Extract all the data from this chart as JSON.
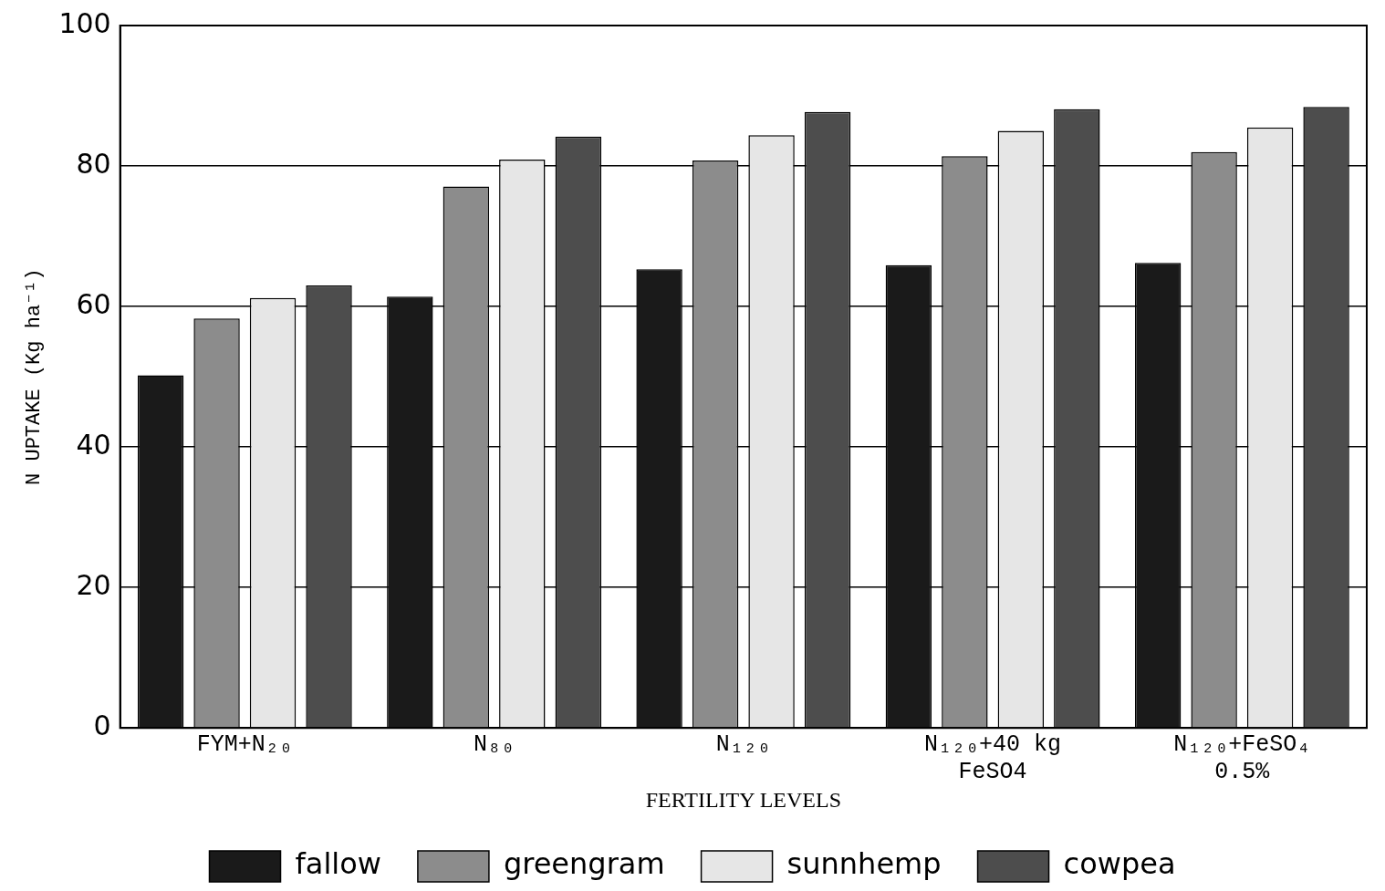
{
  "chart_data": {
    "type": "bar",
    "xlabel": "FERTILITY LEVELS",
    "ylabel": "N UPTAKE (Kg ha⁻¹)",
    "categories": [
      "FYM+N₂₀",
      "N₈₀",
      "N₁₂₀",
      "N₁₂₀+40 kg FeSO4",
      "N₁₂₀+FeSO₄ 0.5%"
    ],
    "series": [
      {
        "name": "fallow",
        "color": "#1a1a1a",
        "values": [
          50.2,
          61.4,
          65.3,
          65.9,
          66.2
        ]
      },
      {
        "name": "greengram",
        "color": "#8c8c8c",
        "values": [
          58.3,
          77.1,
          80.8,
          81.4,
          82.0
        ]
      },
      {
        "name": "sunnhemp",
        "color": "#e6e6e6",
        "values": [
          61.2,
          80.9,
          84.4,
          85.0,
          85.5
        ]
      },
      {
        "name": "cowpea",
        "color": "#4d4d4d",
        "values": [
          63.0,
          84.2,
          87.7,
          88.1,
          88.4
        ]
      }
    ],
    "ylim": [
      0,
      100
    ],
    "yticks": [
      0,
      20,
      40,
      60,
      80,
      100
    ],
    "grid": "y",
    "legend": "bottom"
  }
}
